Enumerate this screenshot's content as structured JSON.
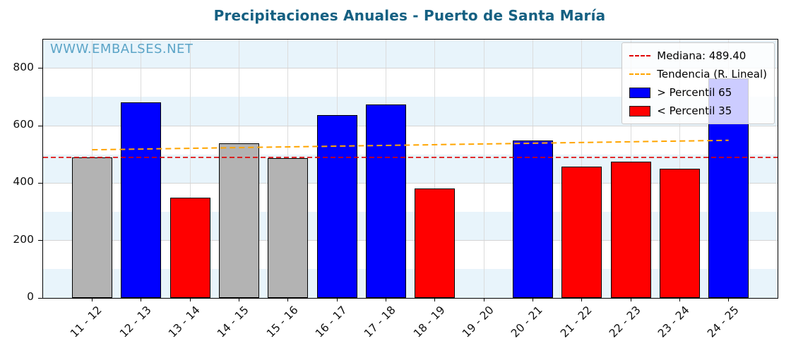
{
  "title": "Precipitaciones Anuales - Puerto de Santa María",
  "watermark": "WWW.EMBALSES.NET",
  "legend": {
    "median_label": "Mediana: 489.40",
    "trend_label": "Tendencia (R. Lineal)",
    "above_label": "> Percentil 65",
    "below_label": "< Percentil 35"
  },
  "colors": {
    "title": "#156082",
    "watermark": "#5ba4c7",
    "median_line": "#e00000",
    "trend_line": "#ffa500",
    "bar_blue": "#0000ff",
    "bar_red": "#ff0000",
    "bar_gray": "#b3b3b3",
    "band": "#e8f4fb",
    "axis": "#000000"
  },
  "chart_data": {
    "type": "bar",
    "title": "Precipitaciones Anuales - Puerto de Santa María",
    "categories": [
      "11 - 12",
      "12 - 13",
      "13 - 14",
      "14 - 15",
      "15 - 16",
      "16 - 17",
      "17 - 18",
      "18 - 19",
      "19 - 20",
      "20 - 21",
      "21 - 22",
      "22 - 23",
      "23 - 24",
      "24 - 25"
    ],
    "values": [
      489,
      680,
      350,
      538,
      487,
      638,
      675,
      380,
      0,
      548,
      457,
      474,
      450,
      765
    ],
    "bar_classes": [
      "gray",
      "blue",
      "red",
      "gray",
      "gray",
      "blue",
      "blue",
      "red",
      "none",
      "blue",
      "red",
      "red",
      "red",
      "blue"
    ],
    "median": 489.4,
    "trend_line": {
      "start_value": 516,
      "end_value": 549
    },
    "ylim": [
      0,
      900
    ],
    "yticks": [
      0,
      200,
      400,
      600,
      800
    ],
    "xlabel": "",
    "ylabel": "",
    "grid": true,
    "legend_position": "upper right"
  }
}
